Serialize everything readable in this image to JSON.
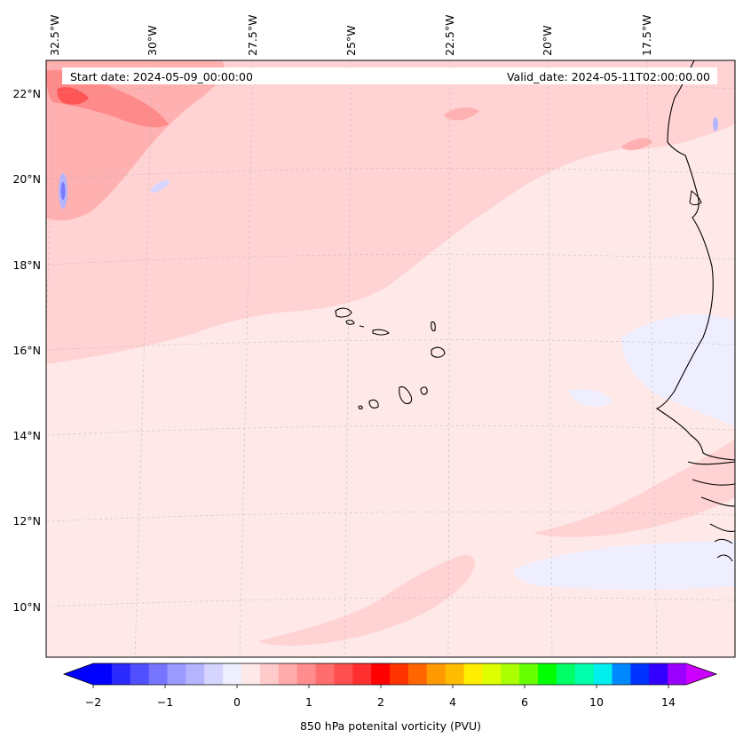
{
  "header": {
    "start_date": "Start date: 2024-05-09_00:00:00",
    "valid_date": "Valid_date: 2024-05-11T02:00:00.00"
  },
  "axes": {
    "longitude_labels": [
      "32.5°W",
      "30°W",
      "27.5°W",
      "25°W",
      "22.5°W",
      "20°W",
      "17.5°W"
    ],
    "latitude_labels": [
      "22°N",
      "20°N",
      "18°N",
      "16°N",
      "14°N",
      "12°N",
      "10°N"
    ]
  },
  "colorbar": {
    "title": "850 hPa potenital vorticity (PVU)",
    "tick_labels": [
      "−2",
      "−1",
      "0",
      "1",
      "2",
      "4",
      "6",
      "10",
      "14"
    ],
    "colors": [
      "#0000ff",
      "#2a2aff",
      "#5050ff",
      "#7575ff",
      "#9a9aff",
      "#b5b5ff",
      "#d5d5ff",
      "#eeeeff",
      "#ffe8e8",
      "#ffcaca",
      "#ffabab",
      "#ff8d8d",
      "#ff6e6e",
      "#ff4f4f",
      "#ff2f2f",
      "#ff0000",
      "#ff3300",
      "#ff6600",
      "#ff9900",
      "#ffbb00",
      "#ffee00",
      "#ddff00",
      "#aaff00",
      "#66ff00",
      "#00ff00",
      "#00ff66",
      "#00ffaa",
      "#00eeee",
      "#0088ff",
      "#0033ff",
      "#3300ff",
      "#9900ff"
    ],
    "under_color": "#0000ff",
    "over_color": "#cc00ff"
  },
  "field_colors": {
    "background": "#ffe8e8",
    "light_pink": "#ffd3d3",
    "pink": "#ffb0b0",
    "salmon": "#ff8a8a",
    "red": "#ff5555",
    "lavender": "#eeeeff",
    "blue_light": "#b5b5ff",
    "blue": "#7a7aff"
  }
}
